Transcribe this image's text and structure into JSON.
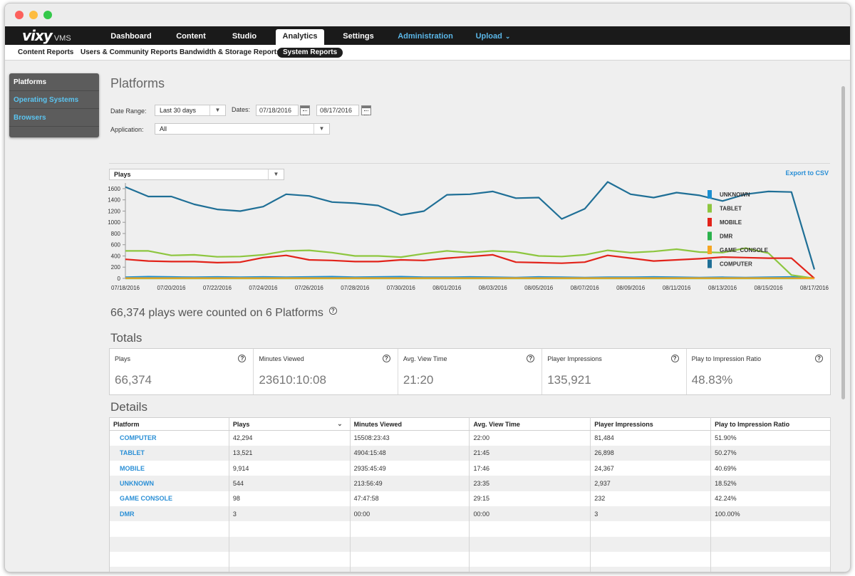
{
  "app": {
    "logo": "vixy",
    "logo_sub": "VMS"
  },
  "nav": {
    "tabs": [
      {
        "label": "Dashboard"
      },
      {
        "label": "Content"
      },
      {
        "label": "Studio"
      },
      {
        "label": "Analytics",
        "active": true
      },
      {
        "label": "Settings"
      },
      {
        "label": "Administration"
      },
      {
        "label": "Upload"
      }
    ]
  },
  "subnav": {
    "tabs": [
      {
        "label": "Content Reports"
      },
      {
        "label": "Users & Community Reports"
      },
      {
        "label": "Bandwidth & Storage Reports"
      },
      {
        "label": "System Reports",
        "active": true
      }
    ]
  },
  "sidebar": {
    "items": [
      {
        "label": "Platforms",
        "active": true
      },
      {
        "label": "Operating Systems"
      },
      {
        "label": "Browsers"
      }
    ]
  },
  "page": {
    "title": "Platforms",
    "date_range_label": "Date Range:",
    "date_range_value": "Last 30 days",
    "dates_label": "Dates:",
    "date_from": "07/18/2016",
    "date_to": "08/17/2016",
    "application_label": "Application:",
    "application_value": "All",
    "metric_select": "Plays",
    "export_label": "Export to CSV",
    "summary": "66,374 plays were counted on 6 Platforms",
    "totals_title": "Totals",
    "details_title": "Details"
  },
  "totals": [
    {
      "label": "Plays",
      "value": "66,374"
    },
    {
      "label": "Minutes Viewed",
      "value": "23610:10:08"
    },
    {
      "label": "Avg. View Time",
      "value": "21:20"
    },
    {
      "label": "Player Impressions",
      "value": "135,921"
    },
    {
      "label": "Play to Impression Ratio",
      "value": "48.83%"
    }
  ],
  "details": {
    "headers": [
      "Platform",
      "Plays",
      "Minutes Viewed",
      "Avg. View Time",
      "Player Impressions",
      "Play to Impression Ratio"
    ],
    "rows": [
      [
        "COMPUTER",
        "42,294",
        "15508:23:43",
        "22:00",
        "81,484",
        "51.90%"
      ],
      [
        "TABLET",
        "13,521",
        "4904:15:48",
        "21:45",
        "26,898",
        "50.27%"
      ],
      [
        "MOBILE",
        "9,914",
        "2935:45:49",
        "17:46",
        "24,367",
        "40.69%"
      ],
      [
        "UNKNOWN",
        "544",
        "213:56:49",
        "23:35",
        "2,937",
        "18.52%"
      ],
      [
        "GAME CONSOLE",
        "98",
        "47:47:58",
        "29:15",
        "232",
        "42.24%"
      ],
      [
        "DMR",
        "3",
        "00:00",
        "00:00",
        "3",
        "100.00%"
      ]
    ],
    "empty_rows": 4
  },
  "chart_data": {
    "type": "line",
    "x": [
      "07/18/2016",
      "07/19/2016",
      "07/20/2016",
      "07/21/2016",
      "07/22/2016",
      "07/23/2016",
      "07/24/2016",
      "07/25/2016",
      "07/26/2016",
      "07/27/2016",
      "07/28/2016",
      "07/29/2016",
      "07/30/2016",
      "07/31/2016",
      "08/01/2016",
      "08/02/2016",
      "08/03/2016",
      "08/04/2016",
      "08/05/2016",
      "08/06/2016",
      "08/07/2016",
      "08/08/2016",
      "08/09/2016",
      "08/10/2016",
      "08/11/2016",
      "08/12/2016",
      "08/13/2016",
      "08/14/2016",
      "08/15/2016",
      "08/16/2016",
      "08/17/2016"
    ],
    "x_tick_labels": [
      "07/18/2016",
      "07/20/2016",
      "07/22/2016",
      "07/24/2016",
      "07/26/2016",
      "07/28/2016",
      "07/30/2016",
      "08/01/2016",
      "08/03/2016",
      "08/05/2016",
      "08/07/2016",
      "08/09/2016",
      "08/11/2016",
      "08/13/2016",
      "08/15/2016",
      "08/17/2016"
    ],
    "y_ticks": [
      0,
      200,
      400,
      600,
      800,
      1000,
      1200,
      1400,
      1600
    ],
    "ylim": [
      0,
      1650
    ],
    "legend_position": "right",
    "series": [
      {
        "name": "UNKNOWN",
        "color": "#1a8fd1",
        "values": [
          20,
          30,
          25,
          20,
          25,
          20,
          25,
          20,
          25,
          30,
          20,
          25,
          30,
          20,
          20,
          25,
          20,
          15,
          25,
          20,
          15,
          20,
          20,
          25,
          20,
          15,
          20,
          15,
          20,
          25,
          5
        ]
      },
      {
        "name": "TABLET",
        "color": "#8dc63f",
        "values": [
          490,
          490,
          410,
          420,
          385,
          390,
          420,
          490,
          500,
          460,
          400,
          400,
          380,
          440,
          490,
          460,
          490,
          470,
          400,
          390,
          420,
          500,
          460,
          480,
          520,
          470,
          460,
          540,
          450,
          60,
          0
        ]
      },
      {
        "name": "MOBILE",
        "color": "#e2231a",
        "values": [
          340,
          310,
          300,
          300,
          280,
          290,
          370,
          410,
          330,
          320,
          300,
          300,
          330,
          320,
          360,
          390,
          420,
          290,
          280,
          270,
          290,
          410,
          360,
          310,
          330,
          350,
          380,
          370,
          360,
          360,
          0
        ]
      },
      {
        "name": "DMR",
        "color": "#2bb24c",
        "values": [
          0,
          0,
          0,
          0,
          0,
          0,
          0,
          0,
          0,
          0,
          0,
          0,
          0,
          0,
          0,
          0,
          0,
          0,
          0,
          0,
          0,
          0,
          0,
          0,
          0,
          0,
          0,
          0,
          0,
          0,
          0
        ]
      },
      {
        "name": "GAME_CONSOLE",
        "color": "#f5a623",
        "values": [
          5,
          5,
          5,
          5,
          5,
          5,
          5,
          5,
          5,
          5,
          5,
          5,
          5,
          5,
          5,
          5,
          5,
          5,
          5,
          5,
          5,
          5,
          5,
          5,
          5,
          5,
          5,
          5,
          5,
          5,
          0
        ]
      },
      {
        "name": "COMPUTER",
        "color": "#1f6f96",
        "values": [
          1630,
          1460,
          1460,
          1320,
          1230,
          1200,
          1280,
          1500,
          1470,
          1360,
          1340,
          1300,
          1130,
          1200,
          1490,
          1500,
          1550,
          1430,
          1440,
          1060,
          1240,
          1720,
          1500,
          1440,
          1530,
          1480,
          1380,
          1500,
          1550,
          1540,
          160
        ]
      }
    ]
  }
}
